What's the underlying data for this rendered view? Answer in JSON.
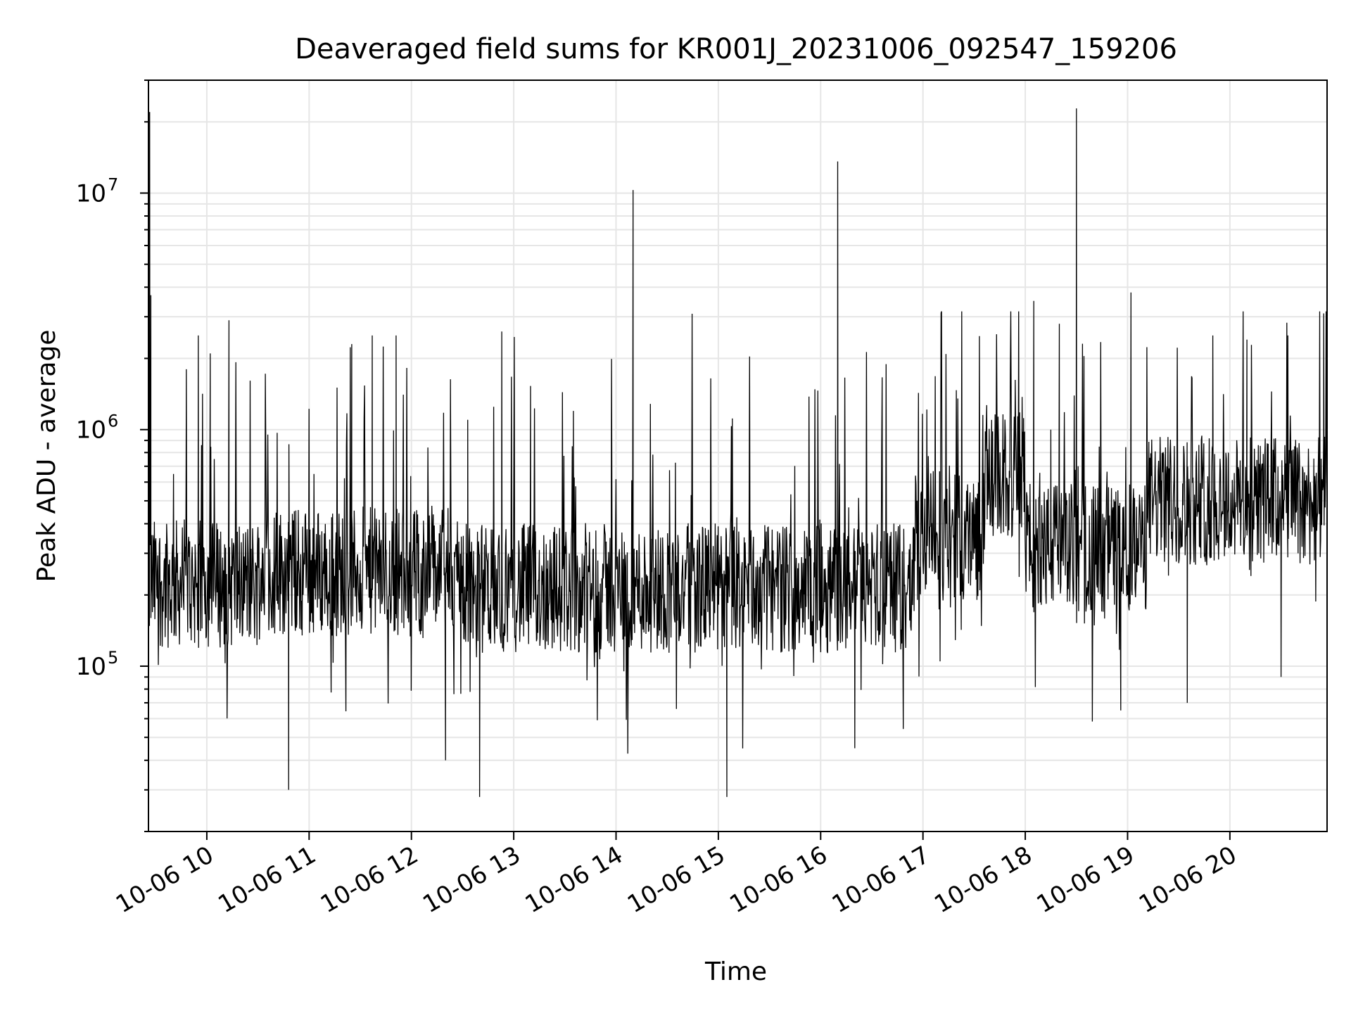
{
  "chart_data": {
    "type": "line",
    "title": "Deaveraged field sums for KR001J_20231006_092547_159206",
    "xlabel": "Time",
    "ylabel": "Peak ADU - average",
    "xlim": [
      "2023-10-06T09:25:47",
      "2023-10-06T20:57:00"
    ],
    "ylim": [
      20000,
      30000000
    ],
    "yscale": "log",
    "grid": true,
    "legend": "none",
    "x_tick_labels": [
      "10-06 10",
      "10-06 11",
      "10-06 12",
      "10-06 13",
      "10-06 14",
      "10-06 15",
      "10-06 16",
      "10-06 17",
      "10-06 18",
      "10-06 19",
      "10-06 20"
    ],
    "x_tick_values": [
      "2023-10-06T10:00",
      "2023-10-06T11:00",
      "2023-10-06T12:00",
      "2023-10-06T13:00",
      "2023-10-06T14:00",
      "2023-10-06T15:00",
      "2023-10-06T16:00",
      "2023-10-06T17:00",
      "2023-10-06T18:00",
      "2023-10-06T19:00",
      "2023-10-06T20:00"
    ],
    "y_tick_labels": [
      {
        "base": "10",
        "exp": "5",
        "value": 100000
      },
      {
        "base": "10",
        "exp": "6",
        "value": 1000000
      },
      {
        "base": "10",
        "exp": "7",
        "value": 10000000
      }
    ],
    "line_color": "#000000",
    "series": [
      {
        "x": [
          "2023-10-06T09:25:47",
          "2023-10-06T09:26:30",
          "2023-10-06T09:27:10",
          "2023-10-06T09:28:00",
          "2023-10-06T09:31:00",
          "2023-10-06T09:45:00",
          "2023-10-06T09:48:00",
          "2023-10-06T09:50:00",
          "2023-10-06T09:55:00",
          "2023-10-06T09:58:00",
          "2023-10-06T10:02:00",
          "2023-10-06T10:06:00",
          "2023-10-06T10:13:00",
          "2023-10-06T10:20:00",
          "10:33",
          "10:48",
          "10:51",
          "11:05",
          "11:12",
          "11:25",
          "11:30",
          "11:37",
          "11:45",
          "11:51",
          "11:58",
          "12:10",
          "12:20",
          "12:33",
          "12:40",
          "12:45",
          "12:50",
          "12:53",
          "13:10",
          "13:17",
          "13:20",
          "13:35",
          "13:55",
          "14:10",
          "14:21",
          "14:35",
          "14:55",
          "15:05",
          "15:15",
          "15:17",
          "15:30",
          "15:50",
          "16:10",
          "16:20",
          "16:25",
          "16:40",
          "17:05",
          "17:30",
          "17:59",
          "18:05",
          "18:15",
          "18:20",
          "18:30",
          "18:31",
          "18:45",
          "18:56",
          "19:02",
          "19:10",
          "19:20",
          "19:35",
          "19:45",
          "19:50",
          "20:05",
          "20:10",
          "20:15",
          "20:30",
          "20:34",
          "20:40",
          "20:50",
          "20:55",
          "20:57"
        ],
        "y": [
          300000,
          22000000,
          3700000,
          200000,
          250000,
          200000,
          1800000,
          180000,
          2500000,
          240000,
          2100000,
          230000,
          2900000,
          250000,
          300000,
          30000,
          260000,
          300000,
          260000,
          2300000,
          280000,
          2500000,
          300000,
          2500000,
          280000,
          300000,
          40000,
          1100000,
          28000,
          300000,
          200000,
          2600000,
          250000,
          220000,
          280000,
          1200000,
          230000,
          10300000,
          250000,
          220000,
          210000,
          28000,
          230000,
          220000,
          240000,
          230000,
          13600000,
          45000,
          230000,
          240000,
          280000,
          300000,
          600000,
          3500000,
          1000000,
          2800000,
          22800000,
          700000,
          300000,
          65000,
          3800000,
          400000,
          350000,
          70000,
          300000,
          2500000,
          600000,
          2400000,
          700000,
          90000,
          2500000,
          300000,
          600000,
          3100000,
          400000
        ]
      }
    ]
  }
}
